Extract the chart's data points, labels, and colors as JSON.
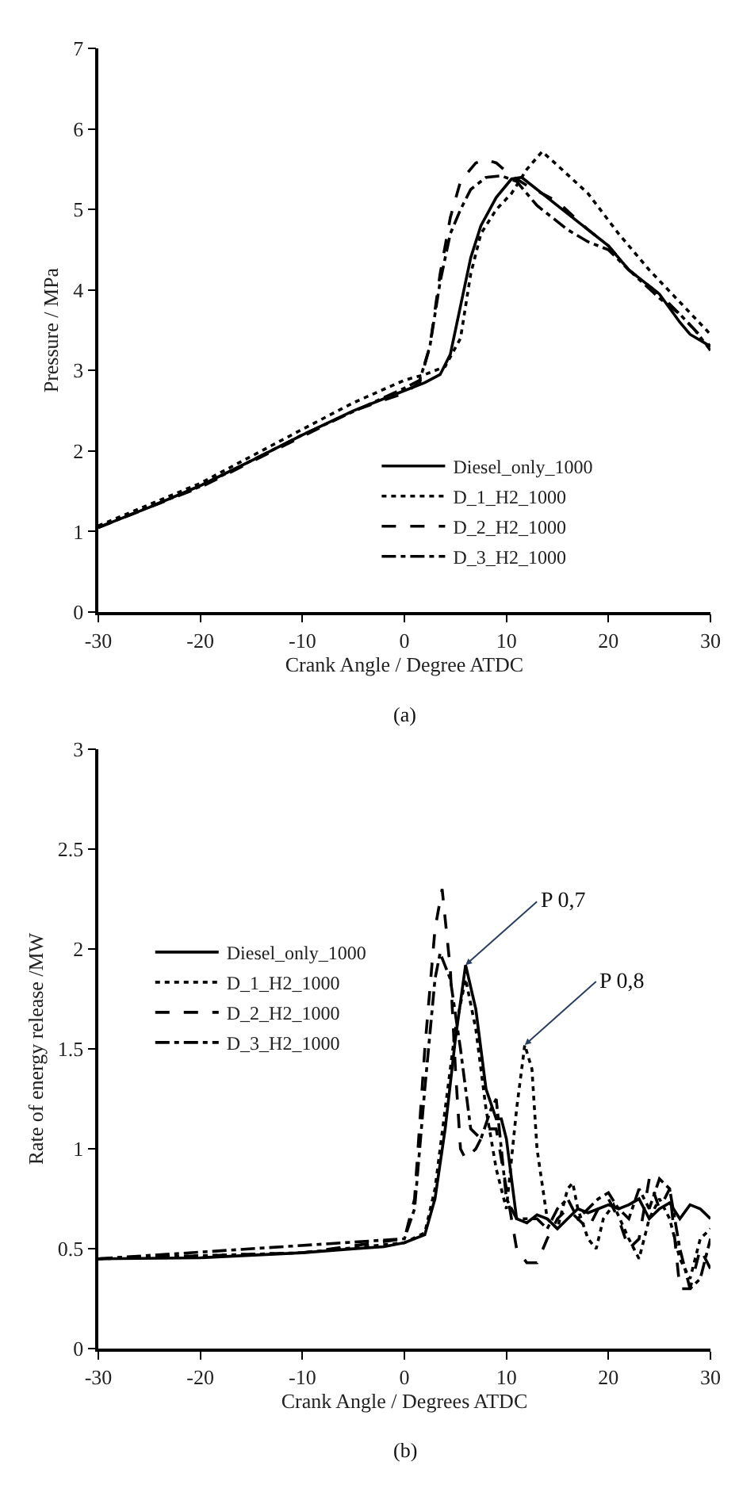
{
  "chart_data": [
    {
      "type": "line",
      "xlabel": "Crank Angle / Degree ATDC",
      "ylabel": "Pressure / MPa",
      "xlim": [
        -30,
        30
      ],
      "xticks": [
        -30,
        -20,
        -10,
        0,
        10,
        20,
        30
      ],
      "ylim": [
        0,
        7
      ],
      "yticks": [
        0,
        1,
        2,
        3,
        4,
        5,
        6,
        7
      ],
      "legend": "bottom",
      "marker": "none",
      "annotations": [
        "(a)"
      ],
      "series": [
        {
          "name": "Diesel_only_1000",
          "color": "#000000",
          "line_style": "solid",
          "x": [
            -30,
            -25,
            -20,
            -15,
            -10,
            -5,
            0,
            2,
            3.5,
            4.5,
            5.5,
            6.5,
            7.5,
            9,
            10.5,
            11.5,
            14,
            17,
            20,
            22,
            25,
            27,
            28,
            30
          ],
          "values": [
            1.05,
            1.3,
            1.57,
            1.88,
            2.2,
            2.5,
            2.75,
            2.85,
            2.95,
            3.2,
            3.8,
            4.4,
            4.8,
            5.15,
            5.38,
            5.4,
            5.15,
            4.85,
            4.55,
            4.25,
            3.95,
            3.6,
            3.45,
            3.3
          ]
        },
        {
          "name": "D_1_H2_1000",
          "color": "#000000",
          "line_style": "dotted",
          "x": [
            -30,
            -20,
            -10,
            -5,
            0,
            2,
            4,
            5.5,
            6.5,
            7.5,
            9,
            10.5,
            12,
            13.5,
            15,
            18,
            21,
            24,
            27,
            30
          ],
          "values": [
            1.07,
            1.6,
            2.27,
            2.6,
            2.88,
            2.95,
            3.05,
            3.4,
            4.2,
            4.7,
            5.0,
            5.2,
            5.5,
            5.72,
            5.55,
            5.2,
            4.7,
            4.25,
            3.85,
            3.45
          ]
        },
        {
          "name": "D_2_H2_1000",
          "color": "#000000",
          "line_style": "dashed",
          "x": [
            -30,
            -20,
            -10,
            -5,
            0,
            1.5,
            2.5,
            3.5,
            4.5,
            5.5,
            7,
            8,
            9,
            10.5,
            12,
            15,
            18,
            20,
            22,
            25,
            27,
            28.5,
            30
          ],
          "values": [
            1.05,
            1.55,
            2.18,
            2.5,
            2.72,
            2.85,
            3.3,
            4.2,
            4.9,
            5.35,
            5.58,
            5.62,
            5.58,
            5.42,
            5.3,
            5.1,
            4.75,
            4.55,
            4.25,
            3.95,
            3.7,
            3.5,
            3.3
          ]
        },
        {
          "name": "D_3_H2_1000",
          "color": "#000000",
          "line_style": "dashdot",
          "x": [
            -30,
            -20,
            -10,
            0,
            1.5,
            2.5,
            3.5,
            4.5,
            5.5,
            6.5,
            8,
            9.5,
            11,
            13,
            16,
            18,
            20,
            22,
            25,
            27,
            28.5,
            30
          ],
          "values": [
            1.05,
            1.56,
            2.2,
            2.78,
            2.88,
            3.3,
            4.1,
            4.7,
            5.0,
            5.25,
            5.4,
            5.42,
            5.35,
            5.05,
            4.75,
            4.6,
            4.5,
            4.25,
            3.9,
            3.7,
            3.5,
            3.25
          ]
        }
      ]
    },
    {
      "type": "line",
      "xlabel": "Crank Angle / Degrees ATDC",
      "ylabel": "Rate of energy release /MW",
      "xlim": [
        -30,
        30
      ],
      "xticks": [
        -30,
        -20,
        -10,
        0,
        10,
        20,
        30
      ],
      "ylim": [
        0,
        3
      ],
      "yticks": [
        0,
        0.5,
        1,
        1.5,
        2,
        2.5,
        3
      ],
      "legend": "left",
      "marker": "none",
      "annotations": [
        {
          "text": "P 0,7",
          "x": 6,
          "y": 1.92
        },
        {
          "text": "P 0,8",
          "x": 11.8,
          "y": 1.52
        },
        "(b)"
      ],
      "series": [
        {
          "name": "Diesel_only_1000",
          "color": "#000000",
          "line_style": "solid",
          "x": [
            -30,
            -20,
            -10,
            -5,
            -2,
            0,
            2,
            3,
            4,
            5,
            6,
            7,
            8,
            9,
            9.5,
            10,
            11,
            12,
            13,
            14,
            15,
            16,
            17,
            18,
            19,
            20,
            21,
            22,
            23,
            24,
            25,
            26,
            27,
            28,
            29,
            30
          ],
          "values": [
            0.45,
            0.455,
            0.48,
            0.5,
            0.51,
            0.53,
            0.57,
            0.75,
            1.1,
            1.55,
            1.92,
            1.7,
            1.3,
            1.15,
            1.15,
            1.05,
            0.65,
            0.63,
            0.67,
            0.65,
            0.6,
            0.65,
            0.7,
            0.68,
            0.7,
            0.72,
            0.7,
            0.72,
            0.75,
            0.65,
            0.7,
            0.73,
            0.65,
            0.72,
            0.7,
            0.65
          ]
        },
        {
          "name": "D_1_H2_1000",
          "color": "#000000",
          "line_style": "dotted",
          "x": [
            -30,
            -10,
            0,
            2,
            3,
            4,
            5,
            6,
            7,
            8,
            9,
            10,
            11,
            11.8,
            12.5,
            13,
            14,
            15,
            16,
            16.5,
            17,
            18,
            18.8,
            19.5,
            20.5,
            22,
            23,
            24,
            25,
            26,
            27,
            28,
            29,
            30
          ],
          "values": [
            0.45,
            0.48,
            0.53,
            0.58,
            0.8,
            1.2,
            1.6,
            1.85,
            1.6,
            1.2,
            0.9,
            0.7,
            1.2,
            1.52,
            1.4,
            1.0,
            0.65,
            0.6,
            0.8,
            0.83,
            0.7,
            0.55,
            0.5,
            0.65,
            0.72,
            0.55,
            0.45,
            0.65,
            0.75,
            0.65,
            0.45,
            0.35,
            0.55,
            0.6
          ]
        },
        {
          "name": "D_2_H2_1000",
          "color": "#000000",
          "line_style": "dashed",
          "x": [
            -30,
            -10,
            0,
            1,
            2,
            3,
            3.7,
            4.5,
            5,
            5.5,
            6,
            7,
            8,
            9,
            10,
            11,
            12,
            13,
            14,
            15,
            16,
            17,
            18,
            19,
            20,
            21,
            22,
            23,
            24,
            25,
            26,
            27,
            28,
            29,
            30
          ],
          "values": [
            0.45,
            0.48,
            0.55,
            0.75,
            1.5,
            2.1,
            2.3,
            1.9,
            1.4,
            1.0,
            0.95,
            1.0,
            1.1,
            1.1,
            0.8,
            0.5,
            0.43,
            0.43,
            0.55,
            0.65,
            0.7,
            0.65,
            0.6,
            0.7,
            0.75,
            0.65,
            0.5,
            0.55,
            0.85,
            0.7,
            0.8,
            0.3,
            0.3,
            0.5,
            0.4
          ]
        },
        {
          "name": "D_3_H2_1000",
          "color": "#000000",
          "line_style": "dashdot",
          "x": [
            -30,
            0,
            1,
            2,
            3,
            3.5,
            4.5,
            5.5,
            6.5,
            7.5,
            8.5,
            9,
            9.5,
            10,
            11,
            13,
            14,
            15,
            16,
            17,
            18,
            19,
            20,
            21,
            22,
            23,
            24,
            25,
            26,
            27,
            28,
            29,
            30
          ],
          "values": [
            0.45,
            0.55,
            0.7,
            1.3,
            1.85,
            1.98,
            1.85,
            1.5,
            1.1,
            1.05,
            1.2,
            1.25,
            1.0,
            0.75,
            0.65,
            0.65,
            0.6,
            0.7,
            0.75,
            0.65,
            0.7,
            0.75,
            0.78,
            0.7,
            0.65,
            0.8,
            0.7,
            0.85,
            0.8,
            0.5,
            0.3,
            0.35,
            0.55
          ]
        }
      ]
    }
  ]
}
